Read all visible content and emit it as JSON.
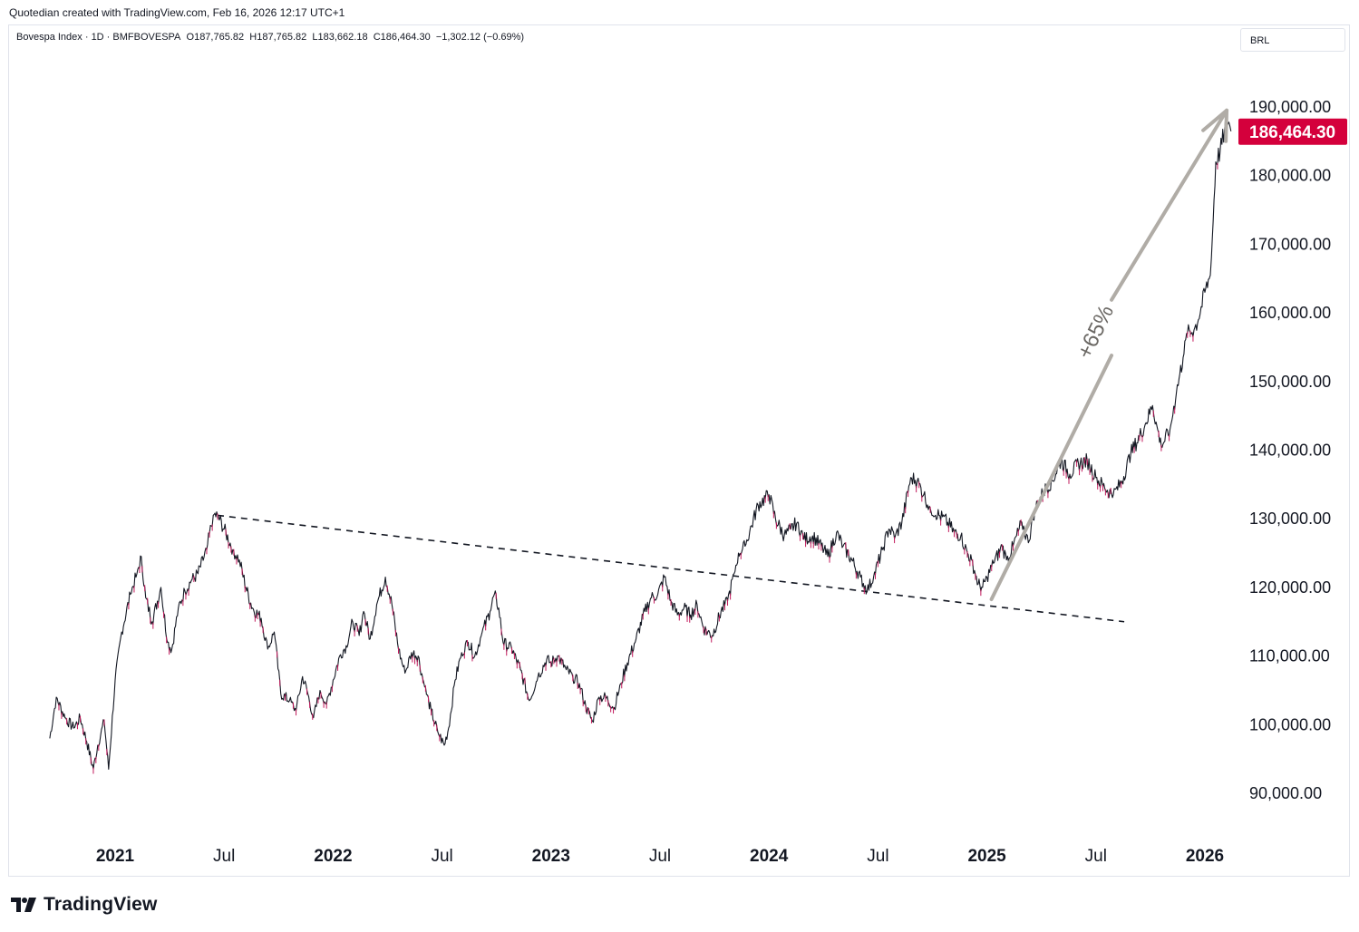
{
  "header": {
    "note": "Quotedian created with TradingView.com, Feb 16, 2026 12:17 UTC+1"
  },
  "legend": {
    "symbol": "Bovespa Index",
    "interval": "1D",
    "exchange": "BMFBOVESPA",
    "open": "O187,765.82",
    "high": "H187,765.82",
    "low": "L183,662.18",
    "close": "C186,464.30",
    "change": "−1,302.12 (−0.69%)"
  },
  "currency": "BRL",
  "last_price_label": "186,464.30",
  "colors": {
    "up": "#131722",
    "down": "#c2185b",
    "price_badge": "#d4003c",
    "arrow": "#b0aca6",
    "trendline": "#131722"
  },
  "footer": {
    "brand": "TradingView"
  },
  "chart_data": {
    "type": "line",
    "title": "Bovespa Index · 1D · BMFBOVESPA",
    "xlabel": "",
    "ylabel": "",
    "ylim": [
      86000,
      200000
    ],
    "xlim": [
      2020.7,
      2026.22
    ],
    "y_ticks": [
      {
        "value": 90000,
        "label": "90,000.00"
      },
      {
        "value": 100000,
        "label": "100,000.00"
      },
      {
        "value": 110000,
        "label": "110,000.00"
      },
      {
        "value": 120000,
        "label": "120,000.00"
      },
      {
        "value": 130000,
        "label": "130,000.00"
      },
      {
        "value": 140000,
        "label": "140,000.00"
      },
      {
        "value": 150000,
        "label": "150,000.00"
      },
      {
        "value": 160000,
        "label": "160,000.00"
      },
      {
        "value": 170000,
        "label": "170,000.00"
      },
      {
        "value": 180000,
        "label": "180,000.00"
      },
      {
        "value": 190000,
        "label": "190,000.00"
      }
    ],
    "x_ticks": [
      {
        "x": 2021.0,
        "label": "2021",
        "bold": true
      },
      {
        "x": 2021.5,
        "label": "Jul",
        "bold": false
      },
      {
        "x": 2022.0,
        "label": "2022",
        "bold": true
      },
      {
        "x": 2022.5,
        "label": "Jul",
        "bold": false
      },
      {
        "x": 2023.0,
        "label": "2023",
        "bold": true
      },
      {
        "x": 2023.5,
        "label": "Jul",
        "bold": false
      },
      {
        "x": 2024.0,
        "label": "2024",
        "bold": true
      },
      {
        "x": 2024.5,
        "label": "Jul",
        "bold": false
      },
      {
        "x": 2025.0,
        "label": "2025",
        "bold": true
      },
      {
        "x": 2025.5,
        "label": "Jul",
        "bold": false
      },
      {
        "x": 2026.0,
        "label": "2026",
        "bold": true
      }
    ],
    "series": [
      {
        "name": "Bovespa Index",
        "points": [
          [
            2020.7,
            98000
          ],
          [
            2020.73,
            104000
          ],
          [
            2020.77,
            101000
          ],
          [
            2020.81,
            99500
          ],
          [
            2020.84,
            101000
          ],
          [
            2020.87,
            97500
          ],
          [
            2020.9,
            93500
          ],
          [
            2020.92,
            97000
          ],
          [
            2020.95,
            100500
          ],
          [
            2020.97,
            93500
          ],
          [
            2021.0,
            106500
          ],
          [
            2021.03,
            113500
          ],
          [
            2021.07,
            119000
          ],
          [
            2021.1,
            122000
          ],
          [
            2021.12,
            124500
          ],
          [
            2021.14,
            118500
          ],
          [
            2021.17,
            115000
          ],
          [
            2021.21,
            120000
          ],
          [
            2021.24,
            112000
          ],
          [
            2021.26,
            111000
          ],
          [
            2021.29,
            117000
          ],
          [
            2021.32,
            119500
          ],
          [
            2021.35,
            121000
          ],
          [
            2021.38,
            122000
          ],
          [
            2021.42,
            125500
          ],
          [
            2021.45,
            130500
          ],
          [
            2021.47,
            130500
          ],
          [
            2021.5,
            128500
          ],
          [
            2021.54,
            125500
          ],
          [
            2021.57,
            124000
          ],
          [
            2021.6,
            120000
          ],
          [
            2021.63,
            117000
          ],
          [
            2021.67,
            115500
          ],
          [
            2021.7,
            111000
          ],
          [
            2021.73,
            113500
          ],
          [
            2021.76,
            104500
          ],
          [
            2021.8,
            103500
          ],
          [
            2021.83,
            102000
          ],
          [
            2021.86,
            107000
          ],
          [
            2021.88,
            105000
          ],
          [
            2021.91,
            101000
          ],
          [
            2021.94,
            105000
          ],
          [
            2021.97,
            103000
          ],
          [
            2022.0,
            106500
          ],
          [
            2022.03,
            110000
          ],
          [
            2022.06,
            111500
          ],
          [
            2022.09,
            115000
          ],
          [
            2022.12,
            113000
          ],
          [
            2022.14,
            116500
          ],
          [
            2022.17,
            112500
          ],
          [
            2022.2,
            117500
          ],
          [
            2022.24,
            121500
          ],
          [
            2022.27,
            117500
          ],
          [
            2022.3,
            111000
          ],
          [
            2022.33,
            107500
          ],
          [
            2022.36,
            110500
          ],
          [
            2022.39,
            110000
          ],
          [
            2022.42,
            105500
          ],
          [
            2022.45,
            102000
          ],
          [
            2022.48,
            99000
          ],
          [
            2022.51,
            97000
          ],
          [
            2022.53,
            99500
          ],
          [
            2022.56,
            106500
          ],
          [
            2022.59,
            110500
          ],
          [
            2022.62,
            112000
          ],
          [
            2022.65,
            110000
          ],
          [
            2022.68,
            113000
          ],
          [
            2022.72,
            116500
          ],
          [
            2022.74,
            119000
          ],
          [
            2022.76,
            117000
          ],
          [
            2022.78,
            112000
          ],
          [
            2022.82,
            111000
          ],
          [
            2022.86,
            108000
          ],
          [
            2022.9,
            103500
          ],
          [
            2022.94,
            107000
          ],
          [
            2022.98,
            109500
          ],
          [
            2023.0,
            109000
          ],
          [
            2023.03,
            110000
          ],
          [
            2023.07,
            108000
          ],
          [
            2023.1,
            107000
          ],
          [
            2023.13,
            106000
          ],
          [
            2023.16,
            102500
          ],
          [
            2023.19,
            100500
          ],
          [
            2023.22,
            104000
          ],
          [
            2023.25,
            104000
          ],
          [
            2023.29,
            102500
          ],
          [
            2023.32,
            106000
          ],
          [
            2023.35,
            109000
          ],
          [
            2023.39,
            112500
          ],
          [
            2023.43,
            116500
          ],
          [
            2023.46,
            118500
          ],
          [
            2023.49,
            119000
          ],
          [
            2023.52,
            121500
          ],
          [
            2023.55,
            118000
          ],
          [
            2023.58,
            116000
          ],
          [
            2023.61,
            117000
          ],
          [
            2023.64,
            116000
          ],
          [
            2023.67,
            117500
          ],
          [
            2023.7,
            114000
          ],
          [
            2023.74,
            113000
          ],
          [
            2023.78,
            116500
          ],
          [
            2023.81,
            118000
          ],
          [
            2023.84,
            122000
          ],
          [
            2023.86,
            125000
          ],
          [
            2023.89,
            126000
          ],
          [
            2023.92,
            129000
          ],
          [
            2023.95,
            132000
          ],
          [
            2024.0,
            133500
          ],
          [
            2024.03,
            130000
          ],
          [
            2024.07,
            127500
          ],
          [
            2024.1,
            128500
          ],
          [
            2024.13,
            129500
          ],
          [
            2024.16,
            127000
          ],
          [
            2024.2,
            127500
          ],
          [
            2024.24,
            126000
          ],
          [
            2024.27,
            124500
          ],
          [
            2024.31,
            128000
          ],
          [
            2024.34,
            126000
          ],
          [
            2024.38,
            124000
          ],
          [
            2024.42,
            121500
          ],
          [
            2024.45,
            119500
          ],
          [
            2024.48,
            121500
          ],
          [
            2024.52,
            125500
          ],
          [
            2024.55,
            128500
          ],
          [
            2024.58,
            127500
          ],
          [
            2024.61,
            129500
          ],
          [
            2024.65,
            136000
          ],
          [
            2024.68,
            135500
          ],
          [
            2024.71,
            133500
          ],
          [
            2024.74,
            131500
          ],
          [
            2024.78,
            130500
          ],
          [
            2024.82,
            129500
          ],
          [
            2024.85,
            128000
          ],
          [
            2024.88,
            127500
          ],
          [
            2024.91,
            125000
          ],
          [
            2024.93,
            124000
          ],
          [
            2024.96,
            120500
          ],
          [
            2024.98,
            120000
          ],
          [
            2025.0,
            121500
          ],
          [
            2025.03,
            123500
          ],
          [
            2025.07,
            126000
          ],
          [
            2025.09,
            124000
          ],
          [
            2025.12,
            126000
          ],
          [
            2025.16,
            129500
          ],
          [
            2025.19,
            126500
          ],
          [
            2025.22,
            131500
          ],
          [
            2025.26,
            134000
          ],
          [
            2025.3,
            135500
          ],
          [
            2025.34,
            138500
          ],
          [
            2025.38,
            136500
          ],
          [
            2025.42,
            138000
          ],
          [
            2025.46,
            138500
          ],
          [
            2025.5,
            136000
          ],
          [
            2025.54,
            134500
          ],
          [
            2025.58,
            133500
          ],
          [
            2025.62,
            135500
          ],
          [
            2025.66,
            139500
          ],
          [
            2025.7,
            142000
          ],
          [
            2025.73,
            144000
          ],
          [
            2025.76,
            146500
          ],
          [
            2025.78,
            143500
          ],
          [
            2025.8,
            140500
          ],
          [
            2025.84,
            143000
          ],
          [
            2025.87,
            148500
          ],
          [
            2025.9,
            153500
          ],
          [
            2025.92,
            157000
          ],
          [
            2025.95,
            157500
          ],
          [
            2025.97,
            159000
          ],
          [
            2026.0,
            163000
          ],
          [
            2026.02,
            165000
          ],
          [
            2026.03,
            168000
          ],
          [
            2026.05,
            182000
          ],
          [
            2026.07,
            183500
          ],
          [
            2026.09,
            186500
          ],
          [
            2026.1,
            188500
          ],
          [
            2026.11,
            187800
          ],
          [
            2026.12,
            186464
          ]
        ]
      }
    ],
    "annotations": [
      {
        "type": "trendline",
        "style": "dashed",
        "from": [
          2021.47,
          130500
        ],
        "to": [
          2025.63,
          115000
        ]
      },
      {
        "type": "arrow",
        "from": [
          2025.0,
          118000
        ],
        "to": [
          2026.1,
          189500
        ],
        "label": "+65%"
      }
    ],
    "last_value": 186464.3
  }
}
